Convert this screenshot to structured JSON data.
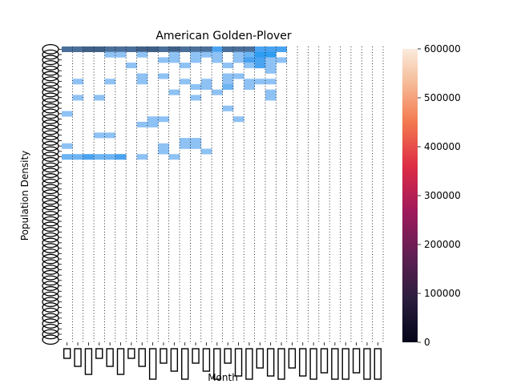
{
  "chart_data": {
    "type": "heatmap",
    "title": "American Golden-Plover",
    "xlabel": "Month",
    "ylabel": "Population Density",
    "grid": true,
    "legend": "colorbar-right",
    "colorbar": {
      "min": 0,
      "max": 600000,
      "ticks": [
        0,
        100000,
        200000,
        300000,
        400000,
        500000,
        600000
      ],
      "tick_labels": [
        "0",
        "100000",
        "200000",
        "300000",
        "400000",
        "500000",
        "600000"
      ],
      "colormap": "rocket"
    },
    "n_columns": 30,
    "n_rows": 55,
    "cells": [
      {
        "row": 0,
        "col": 0,
        "tone": "dark"
      },
      {
        "row": 0,
        "col": 1,
        "tone": "dark"
      },
      {
        "row": 0,
        "col": 2,
        "tone": "darker"
      },
      {
        "row": 0,
        "col": 3,
        "tone": "darker"
      },
      {
        "row": 0,
        "col": 4,
        "tone": "dark"
      },
      {
        "row": 0,
        "col": 5,
        "tone": "dark"
      },
      {
        "row": 0,
        "col": 6,
        "tone": "dark"
      },
      {
        "row": 0,
        "col": 7,
        "tone": "darker"
      },
      {
        "row": 0,
        "col": 8,
        "tone": "darker"
      },
      {
        "row": 0,
        "col": 9,
        "tone": "dark"
      },
      {
        "row": 0,
        "col": 10,
        "tone": "darker"
      },
      {
        "row": 0,
        "col": 11,
        "tone": "dark"
      },
      {
        "row": 0,
        "col": 12,
        "tone": "dark"
      },
      {
        "row": 0,
        "col": 13,
        "tone": "dark"
      },
      {
        "row": 0,
        "col": 14,
        "tone": "mid"
      },
      {
        "row": 0,
        "col": 15,
        "tone": "dark"
      },
      {
        "row": 0,
        "col": 16,
        "tone": "dark"
      },
      {
        "row": 0,
        "col": 17,
        "tone": "dark"
      },
      {
        "row": 0,
        "col": 18,
        "tone": "mid"
      },
      {
        "row": 0,
        "col": 19,
        "tone": "mid"
      },
      {
        "row": 0,
        "col": 20,
        "tone": "mid"
      },
      {
        "row": 1,
        "col": 4,
        "tone": "light"
      },
      {
        "row": 1,
        "col": 5,
        "tone": "light"
      },
      {
        "row": 1,
        "col": 7,
        "tone": "light"
      },
      {
        "row": 1,
        "col": 10,
        "tone": "light"
      },
      {
        "row": 1,
        "col": 12,
        "tone": "light"
      },
      {
        "row": 1,
        "col": 13,
        "tone": "light"
      },
      {
        "row": 1,
        "col": 14,
        "tone": "light"
      },
      {
        "row": 1,
        "col": 16,
        "tone": "light"
      },
      {
        "row": 1,
        "col": 17,
        "tone": "lighter"
      },
      {
        "row": 1,
        "col": 18,
        "tone": "bright"
      },
      {
        "row": 1,
        "col": 19,
        "tone": "bright"
      },
      {
        "row": 2,
        "col": 9,
        "tone": "light"
      },
      {
        "row": 2,
        "col": 10,
        "tone": "light"
      },
      {
        "row": 2,
        "col": 12,
        "tone": "light"
      },
      {
        "row": 2,
        "col": 14,
        "tone": "light"
      },
      {
        "row": 2,
        "col": 16,
        "tone": "light"
      },
      {
        "row": 2,
        "col": 17,
        "tone": "mid"
      },
      {
        "row": 2,
        "col": 18,
        "tone": "mid"
      },
      {
        "row": 2,
        "col": 19,
        "tone": "light"
      },
      {
        "row": 2,
        "col": 20,
        "tone": "light"
      },
      {
        "row": 3,
        "col": 6,
        "tone": "light"
      },
      {
        "row": 3,
        "col": 11,
        "tone": "light"
      },
      {
        "row": 3,
        "col": 15,
        "tone": "light"
      },
      {
        "row": 3,
        "col": 17,
        "tone": "light"
      },
      {
        "row": 3,
        "col": 18,
        "tone": "mid"
      },
      {
        "row": 3,
        "col": 19,
        "tone": "light"
      },
      {
        "row": 4,
        "col": 19,
        "tone": "light"
      },
      {
        "row": 5,
        "col": 7,
        "tone": "light"
      },
      {
        "row": 5,
        "col": 9,
        "tone": "light"
      },
      {
        "row": 5,
        "col": 15,
        "tone": "light"
      },
      {
        "row": 5,
        "col": 16,
        "tone": "light"
      },
      {
        "row": 6,
        "col": 1,
        "tone": "light"
      },
      {
        "row": 6,
        "col": 4,
        "tone": "light"
      },
      {
        "row": 6,
        "col": 7,
        "tone": "light"
      },
      {
        "row": 6,
        "col": 11,
        "tone": "light"
      },
      {
        "row": 6,
        "col": 13,
        "tone": "light"
      },
      {
        "row": 6,
        "col": 15,
        "tone": "light"
      },
      {
        "row": 6,
        "col": 17,
        "tone": "light"
      },
      {
        "row": 6,
        "col": 18,
        "tone": "light"
      },
      {
        "row": 6,
        "col": 19,
        "tone": "light"
      },
      {
        "row": 7,
        "col": 12,
        "tone": "light"
      },
      {
        "row": 7,
        "col": 13,
        "tone": "light"
      },
      {
        "row": 7,
        "col": 15,
        "tone": "lighter"
      },
      {
        "row": 7,
        "col": 17,
        "tone": "light"
      },
      {
        "row": 8,
        "col": 10,
        "tone": "light"
      },
      {
        "row": 8,
        "col": 14,
        "tone": "light"
      },
      {
        "row": 8,
        "col": 19,
        "tone": "light"
      },
      {
        "row": 9,
        "col": 1,
        "tone": "light"
      },
      {
        "row": 9,
        "col": 3,
        "tone": "light"
      },
      {
        "row": 9,
        "col": 12,
        "tone": "light"
      },
      {
        "row": 9,
        "col": 19,
        "tone": "light"
      },
      {
        "row": 11,
        "col": 15,
        "tone": "light"
      },
      {
        "row": 12,
        "col": 0,
        "tone": "light"
      },
      {
        "row": 13,
        "col": 8,
        "tone": "light"
      },
      {
        "row": 13,
        "col": 9,
        "tone": "light"
      },
      {
        "row": 13,
        "col": 16,
        "tone": "light"
      },
      {
        "row": 14,
        "col": 7,
        "tone": "light"
      },
      {
        "row": 14,
        "col": 8,
        "tone": "light"
      },
      {
        "row": 16,
        "col": 3,
        "tone": "light"
      },
      {
        "row": 16,
        "col": 4,
        "tone": "light"
      },
      {
        "row": 17,
        "col": 11,
        "tone": "light"
      },
      {
        "row": 17,
        "col": 12,
        "tone": "light"
      },
      {
        "row": 18,
        "col": 0,
        "tone": "light"
      },
      {
        "row": 18,
        "col": 9,
        "tone": "light"
      },
      {
        "row": 18,
        "col": 11,
        "tone": "light"
      },
      {
        "row": 18,
        "col": 12,
        "tone": "light"
      },
      {
        "row": 19,
        "col": 9,
        "tone": "light"
      },
      {
        "row": 19,
        "col": 13,
        "tone": "light"
      },
      {
        "row": 20,
        "col": 0,
        "tone": "lighter"
      },
      {
        "row": 20,
        "col": 1,
        "tone": "lighter"
      },
      {
        "row": 20,
        "col": 2,
        "tone": "mid"
      },
      {
        "row": 20,
        "col": 3,
        "tone": "lighter"
      },
      {
        "row": 20,
        "col": 4,
        "tone": "lighter"
      },
      {
        "row": 20,
        "col": 5,
        "tone": "mid"
      },
      {
        "row": 20,
        "col": 7,
        "tone": "light"
      },
      {
        "row": 20,
        "col": 10,
        "tone": "light"
      }
    ]
  }
}
